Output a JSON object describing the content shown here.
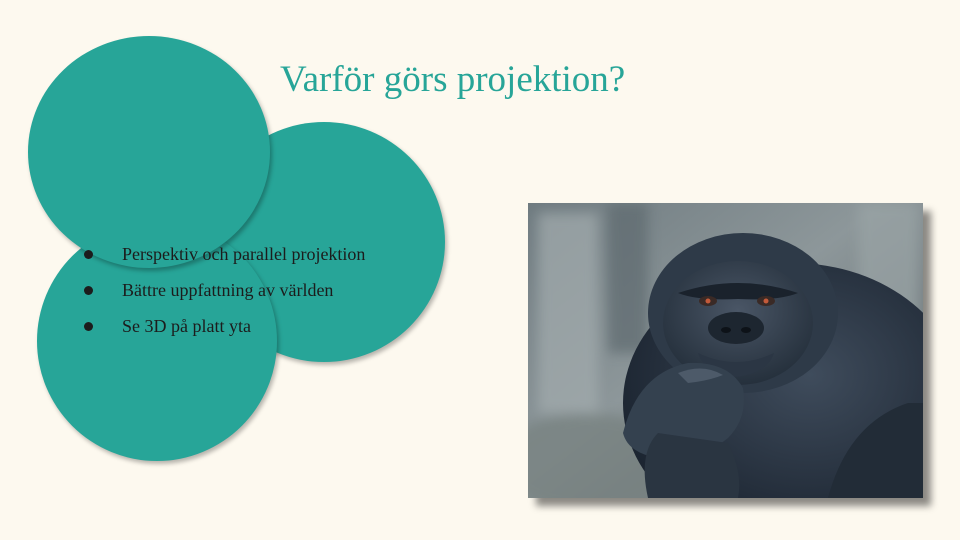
{
  "slide": {
    "title": "Varför görs projektion?",
    "bullets": [
      "Perspektiv och parallel projektion",
      "Bättre uppfattning av världen",
      "Se 3D på platt yta"
    ]
  },
  "image": {
    "icon": "thinking-gorilla-photo"
  },
  "colors": {
    "background": "#fdf9ef",
    "accent": "#27a598",
    "text": "#1c1c1c"
  }
}
